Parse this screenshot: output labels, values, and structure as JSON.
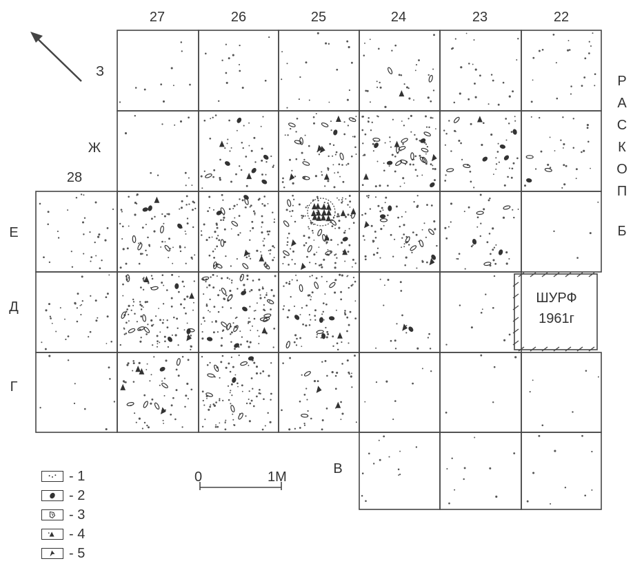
{
  "columns": [
    "28",
    "27",
    "26",
    "25",
    "24",
    "23",
    "22"
  ],
  "rows": [
    "З",
    "Ж",
    "Е",
    "Д",
    "Г",
    "В"
  ],
  "side_label": [
    "Р",
    "А",
    "С",
    "К",
    "О",
    "П",
    "Б"
  ],
  "shurf": {
    "line1": "ШУРФ",
    "line2": "1961г"
  },
  "scale": {
    "start": "0",
    "end": "1М"
  },
  "legend": [
    {
      "mark": "1",
      "icon": "dots-icon"
    },
    {
      "mark": "2",
      "icon": "filled-oval-icon"
    },
    {
      "mark": "3",
      "icon": "outlined-fragment-icon"
    },
    {
      "mark": "4",
      "icon": "triangle-icon"
    },
    {
      "mark": "5",
      "icon": "filled-arrowhead-icon"
    }
  ],
  "north_arrow": {
    "icon": "arrow-icon"
  }
}
